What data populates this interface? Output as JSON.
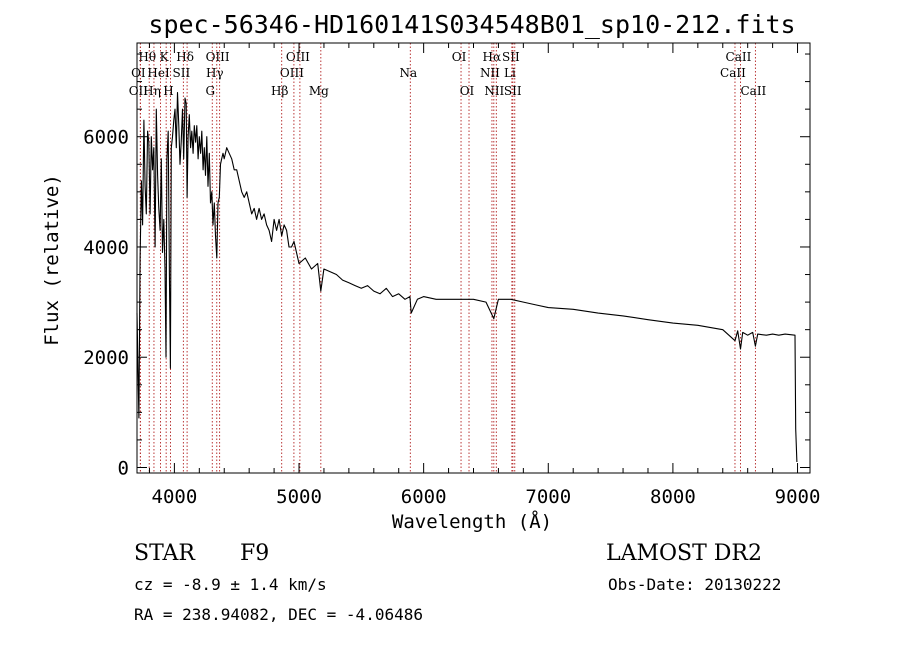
{
  "chart_data": {
    "type": "line",
    "title": "spec-56346-HD160141S034548B01_sp10-212.fits",
    "xlabel": "Wavelength (Å)",
    "ylabel": "Flux (relative)",
    "xlim": [
      3700,
      9100
    ],
    "ylim": [
      -100,
      7700
    ],
    "x_ticks": [
      4000,
      5000,
      6000,
      7000,
      8000,
      9000
    ],
    "y_ticks": [
      0,
      2000,
      4000,
      6000
    ],
    "series": [
      {
        "x": [
          3700,
          3715,
          3725,
          3735,
          3745,
          3755,
          3765,
          3775,
          3785,
          3795,
          3805,
          3815,
          3825,
          3835,
          3845,
          3855,
          3865,
          3875,
          3885,
          3895,
          3905,
          3915,
          3925,
          3933,
          3940,
          3950,
          3960,
          3968,
          3975,
          3985,
          3995,
          4005,
          4015,
          4025,
          4035,
          4045,
          4055,
          4065,
          4075,
          4085,
          4095,
          4102,
          4110,
          4120,
          4130,
          4140,
          4150,
          4160,
          4170,
          4180,
          4190,
          4200,
          4210,
          4220,
          4230,
          4240,
          4250,
          4260,
          4270,
          4280,
          4290,
          4300,
          4310,
          4320,
          4330,
          4340,
          4350,
          4360,
          4370,
          4380,
          4390,
          4400,
          4420,
          4440,
          4460,
          4480,
          4500,
          4520,
          4540,
          4560,
          4580,
          4600,
          4620,
          4640,
          4660,
          4680,
          4700,
          4720,
          4740,
          4760,
          4780,
          4800,
          4820,
          4840,
          4861,
          4880,
          4900,
          4920,
          4940,
          4960,
          4980,
          5000,
          5050,
          5100,
          5150,
          5175,
          5200,
          5250,
          5300,
          5350,
          5400,
          5450,
          5500,
          5550,
          5600,
          5650,
          5700,
          5750,
          5800,
          5850,
          5890,
          5900,
          5950,
          6000,
          6100,
          6200,
          6300,
          6400,
          6500,
          6563,
          6600,
          6700,
          6800,
          6900,
          7000,
          7200,
          7400,
          7600,
          7800,
          8000,
          8200,
          8400,
          8498,
          8520,
          8542,
          8560,
          8600,
          8640,
          8662,
          8680,
          8750,
          8800,
          8850,
          8900,
          8980,
          8985,
          8995
        ],
        "y": [
          2800,
          900,
          3800,
          5200,
          4400,
          6300,
          5100,
          4600,
          6100,
          5900,
          4600,
          6000,
          5400,
          5800,
          4000,
          6500,
          5300,
          4700,
          4300,
          5600,
          3900,
          4500,
          3600,
          2000,
          5600,
          6100,
          3500,
          1800,
          5800,
          6000,
          6300,
          6500,
          5800,
          6800,
          6200,
          5500,
          5900,
          6500,
          5600,
          6700,
          6600,
          4900,
          6000,
          6400,
          5800,
          6100,
          5700,
          6200,
          5900,
          6200,
          5600,
          6000,
          5700,
          6100,
          5400,
          5800,
          5300,
          6000,
          5100,
          5700,
          4800,
          5000,
          4400,
          4800,
          4200,
          3800,
          4800,
          4900,
          5500,
          5600,
          5700,
          5600,
          5800,
          5700,
          5600,
          5400,
          5400,
          5200,
          5000,
          4900,
          5000,
          4800,
          4600,
          4700,
          4500,
          4700,
          4500,
          4600,
          4400,
          4300,
          4100,
          4500,
          4300,
          4500,
          4200,
          4400,
          4300,
          4000,
          4000,
          4100,
          3900,
          3700,
          3800,
          3600,
          3700,
          3200,
          3600,
          3550,
          3500,
          3400,
          3350,
          3300,
          3250,
          3300,
          3200,
          3150,
          3250,
          3100,
          3150,
          3050,
          3100,
          2800,
          3050,
          3100,
          3050,
          3050,
          3050,
          3050,
          3000,
          2700,
          3050,
          3050,
          3000,
          2950,
          2900,
          2870,
          2800,
          2750,
          2680,
          2620,
          2580,
          2500,
          2300,
          2480,
          2150,
          2450,
          2400,
          2450,
          2200,
          2420,
          2400,
          2420,
          2400,
          2420,
          2400,
          700,
          100
        ]
      }
    ],
    "line_markers": [
      {
        "label": "Hθ",
        "x": 3798,
        "row": 1
      },
      {
        "label": "OI",
        "x": 3727,
        "row": 2
      },
      {
        "label": "OII",
        "x": 3727,
        "row": 3
      },
      {
        "label": "Hη",
        "x": 3836,
        "row": 3
      },
      {
        "label": "K",
        "x": 3934,
        "row": 1
      },
      {
        "label": "HeI",
        "x": 3889,
        "row": 2
      },
      {
        "label": "H",
        "x": 3969,
        "row": 3
      },
      {
        "label": "Hδ",
        "x": 4102,
        "row": 1
      },
      {
        "label": "SII",
        "x": 4072,
        "row": 2
      },
      {
        "label": "OIII",
        "x": 4363,
        "row": 1
      },
      {
        "label": "Hγ",
        "x": 4340,
        "row": 2
      },
      {
        "label": "G",
        "x": 4304,
        "row": 3
      },
      {
        "label": "OIII",
        "x": 5007,
        "row": 1
      },
      {
        "label": "OIII",
        "x": 4959,
        "row": 2
      },
      {
        "label": "Hβ",
        "x": 4861,
        "row": 3
      },
      {
        "label": "Mg",
        "x": 5175,
        "row": 3
      },
      {
        "label": "Na",
        "x": 5893,
        "row": 2
      },
      {
        "label": "OI",
        "x": 6300,
        "row": 1
      },
      {
        "label": "OI",
        "x": 6364,
        "row": 3
      },
      {
        "label": "Hα",
        "x": 6563,
        "row": 1
      },
      {
        "label": "SII",
        "x": 6716,
        "row": 1
      },
      {
        "label": "NII",
        "x": 6548,
        "row": 2
      },
      {
        "label": "Li",
        "x": 6708,
        "row": 2
      },
      {
        "label": "NII",
        "x": 6583,
        "row": 3
      },
      {
        "label": "SII",
        "x": 6731,
        "row": 3
      },
      {
        "label": "CaII",
        "x": 8542,
        "row": 1
      },
      {
        "label": "CaII",
        "x": 8498,
        "row": 2
      },
      {
        "label": "CaII",
        "x": 8662,
        "row": 3
      }
    ]
  },
  "info": {
    "object_type": "STAR",
    "subclass": "F9",
    "survey": "LAMOST DR2",
    "cz": "cz = -8.9 ± 1.4 km/s",
    "obs_date": "Obs-Date: 20130222",
    "coords": "RA = 238.94082, DEC =  -4.06486"
  }
}
